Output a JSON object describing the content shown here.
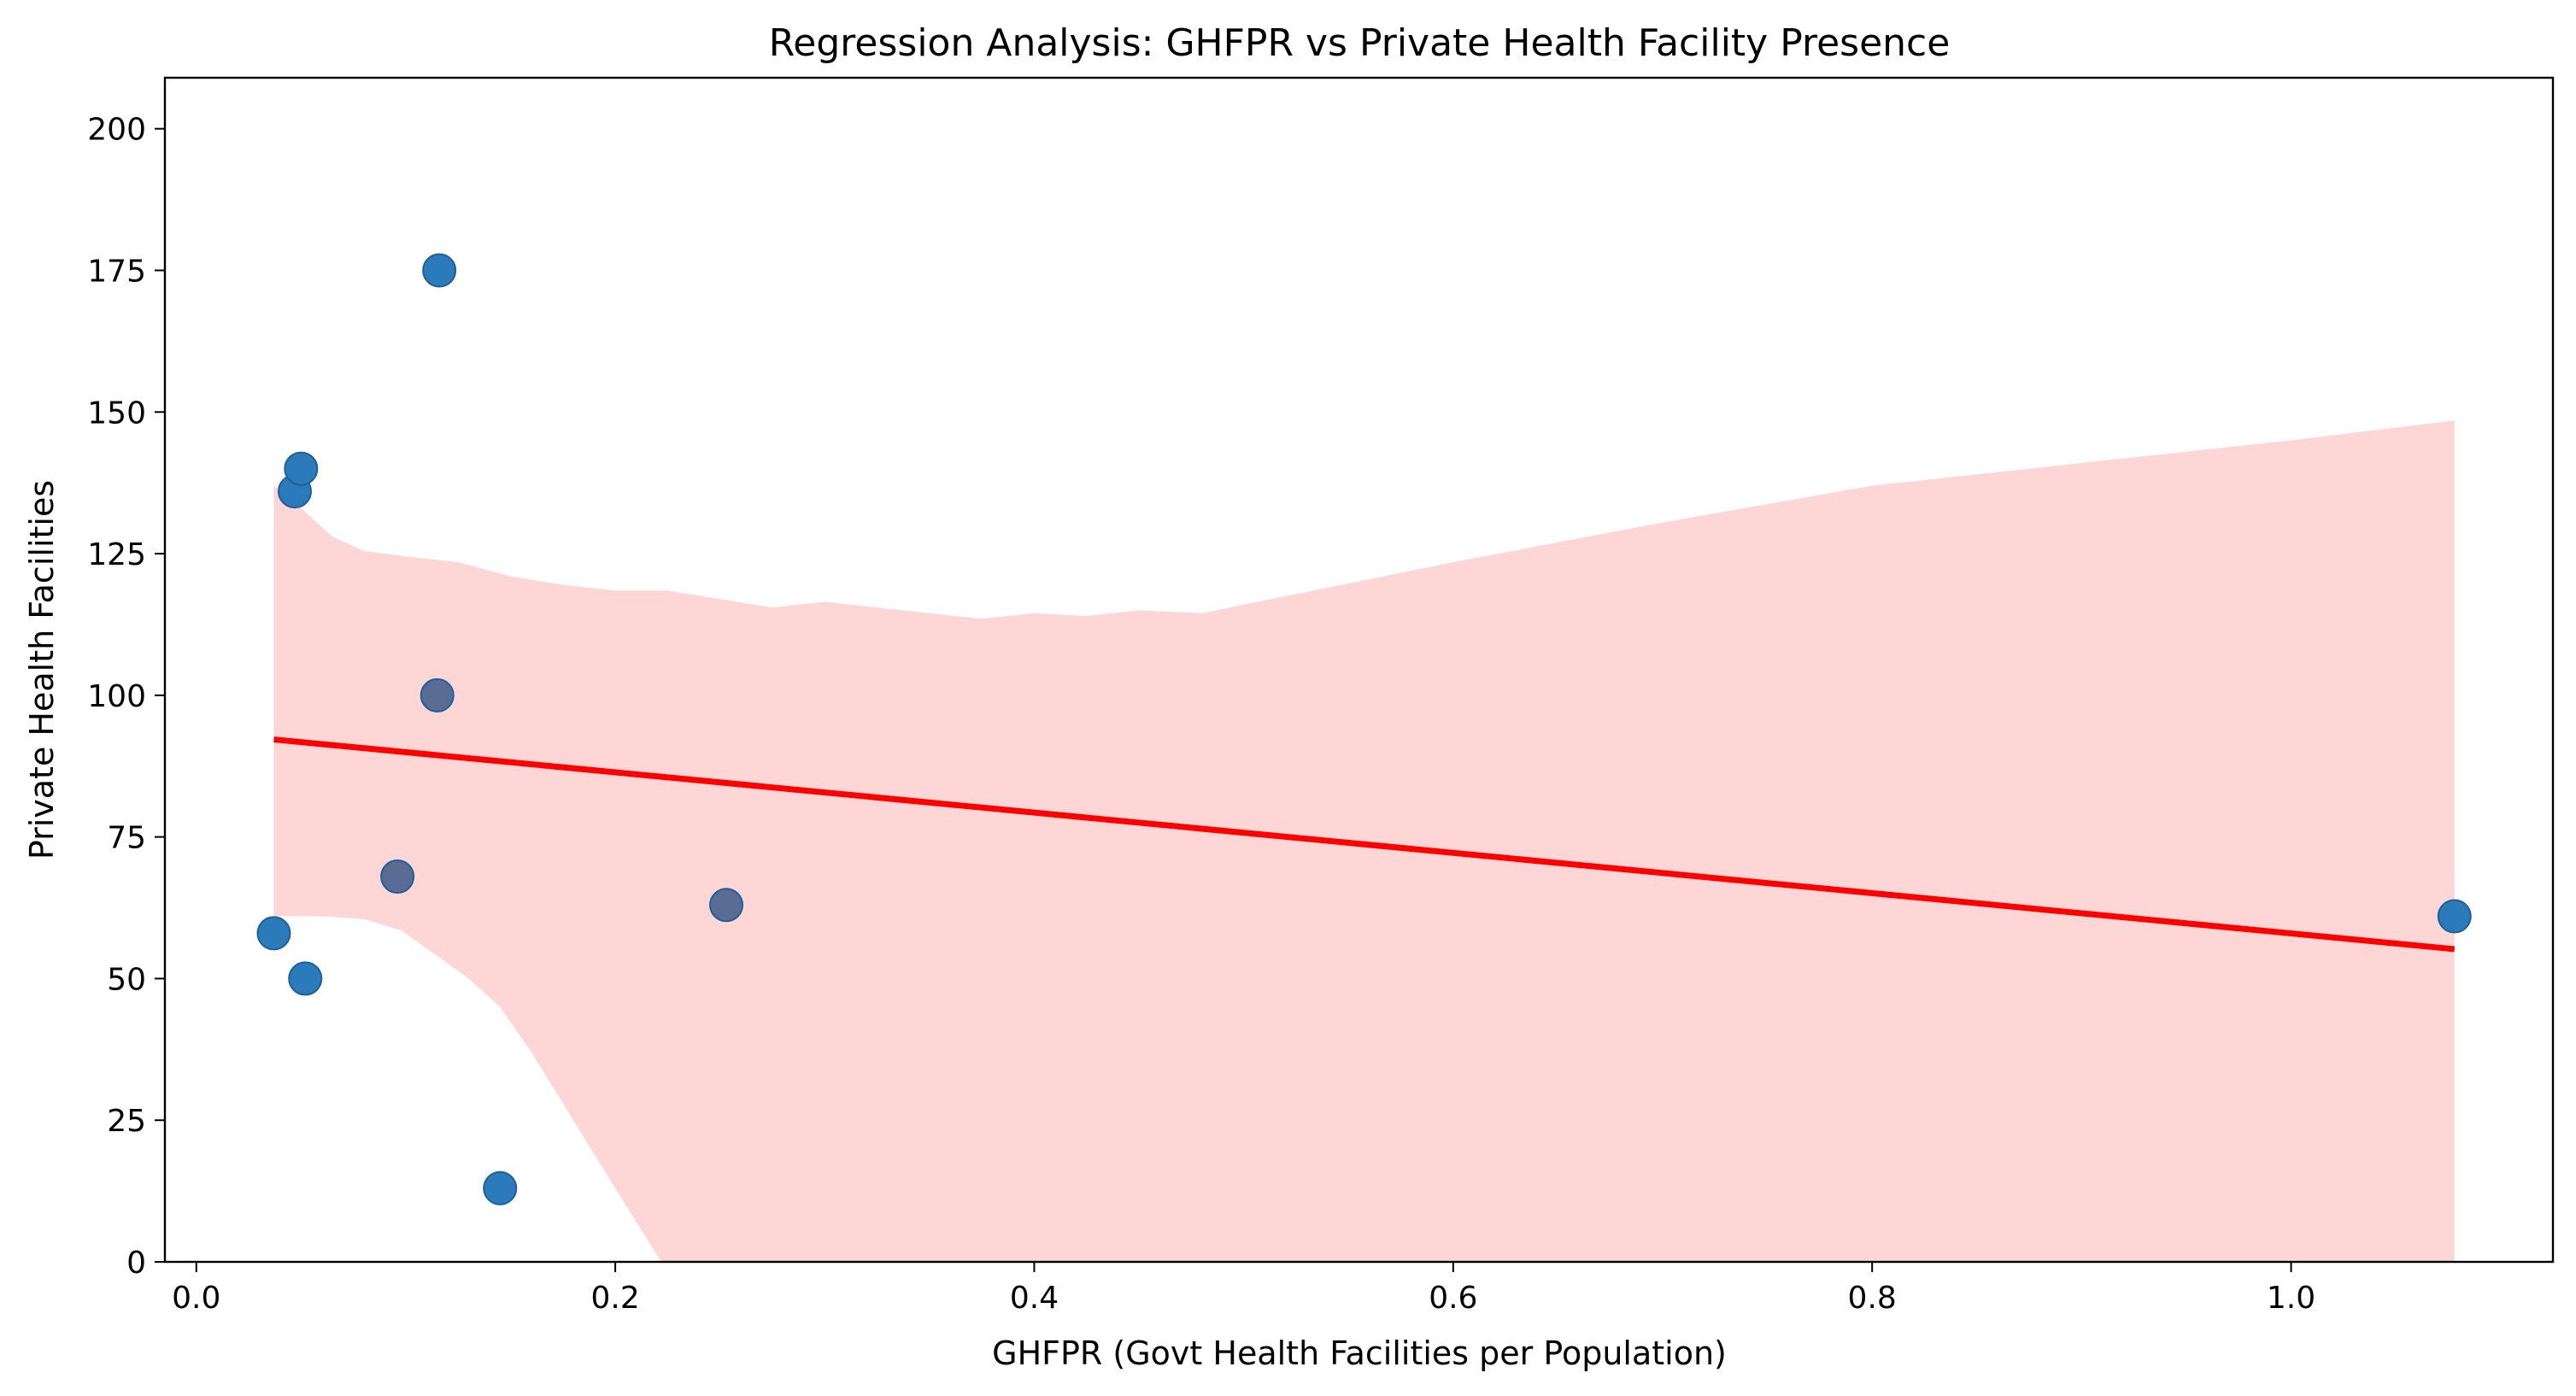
{
  "chart_data": {
    "type": "scatter",
    "title": "Regression Analysis: GHFPR vs Private Health Facility Presence",
    "xlabel": "GHFPR (Govt Health Facilities per Population)",
    "ylabel": "Private Health Facilities",
    "xlim": [
      -0.015,
      1.125
    ],
    "ylim": [
      0,
      209
    ],
    "x_ticks": [
      0.0,
      0.2,
      0.4,
      0.6,
      0.8,
      1.0
    ],
    "x_tick_labels": [
      "0.0",
      "0.2",
      "0.4",
      "0.6",
      "0.8",
      "1.0"
    ],
    "y_ticks": [
      0,
      25,
      50,
      75,
      100,
      125,
      150,
      175,
      200
    ],
    "y_tick_labels": [
      "0",
      "25",
      "50",
      "75",
      "100",
      "125",
      "150",
      "175",
      "200"
    ],
    "grid": false,
    "points": [
      {
        "x": 0.037,
        "y": 58
      },
      {
        "x": 0.047,
        "y": 136
      },
      {
        "x": 0.05,
        "y": 140
      },
      {
        "x": 0.052,
        "y": 50
      },
      {
        "x": 0.096,
        "y": 68
      },
      {
        "x": 0.115,
        "y": 100
      },
      {
        "x": 0.116,
        "y": 175
      },
      {
        "x": 0.145,
        "y": 13
      },
      {
        "x": 0.253,
        "y": 63
      },
      {
        "x": 1.078,
        "y": 61
      }
    ],
    "regression_line": [
      {
        "x": 0.037,
        "y": 92.2
      },
      {
        "x": 1.078,
        "y": 55.2
      }
    ],
    "confidence_band_upper": [
      {
        "x": 0.037,
        "y": 137
      },
      {
        "x": 0.05,
        "y": 133
      },
      {
        "x": 0.065,
        "y": 128
      },
      {
        "x": 0.08,
        "y": 125.5
      },
      {
        "x": 0.1,
        "y": 124.5
      },
      {
        "x": 0.125,
        "y": 123.5
      },
      {
        "x": 0.15,
        "y": 121
      },
      {
        "x": 0.175,
        "y": 119.5
      },
      {
        "x": 0.2,
        "y": 118.5
      },
      {
        "x": 0.225,
        "y": 118.5
      },
      {
        "x": 0.25,
        "y": 117
      },
      {
        "x": 0.275,
        "y": 115.5
      },
      {
        "x": 0.3,
        "y": 116.5
      },
      {
        "x": 0.325,
        "y": 115.5
      },
      {
        "x": 0.35,
        "y": 114.5
      },
      {
        "x": 0.375,
        "y": 113.5
      },
      {
        "x": 0.4,
        "y": 114.5
      },
      {
        "x": 0.425,
        "y": 114
      },
      {
        "x": 0.45,
        "y": 115
      },
      {
        "x": 0.48,
        "y": 114.5
      },
      {
        "x": 0.6,
        "y": 123.5
      },
      {
        "x": 0.7,
        "y": 130.5
      },
      {
        "x": 0.8,
        "y": 137
      },
      {
        "x": 0.9,
        "y": 141
      },
      {
        "x": 1.0,
        "y": 145
      },
      {
        "x": 1.078,
        "y": 148.5
      }
    ],
    "confidence_band_lower": [
      {
        "x": 1.078,
        "y": 0
      },
      {
        "x": 0.222,
        "y": 0
      },
      {
        "x": 0.205,
        "y": 10
      },
      {
        "x": 0.19,
        "y": 19
      },
      {
        "x": 0.175,
        "y": 28
      },
      {
        "x": 0.16,
        "y": 37
      },
      {
        "x": 0.145,
        "y": 45
      },
      {
        "x": 0.13,
        "y": 50
      },
      {
        "x": 0.115,
        "y": 54
      },
      {
        "x": 0.098,
        "y": 58.5
      },
      {
        "x": 0.08,
        "y": 60.5
      },
      {
        "x": 0.06,
        "y": 61
      },
      {
        "x": 0.037,
        "y": 61
      }
    ],
    "colors": {
      "points": "#2b7bba",
      "points_in_band": "#5a6c94",
      "point_edge": "#1f5f99",
      "line": "#ff0000",
      "band": "#ffd6d6",
      "axis": "#000000"
    }
  }
}
